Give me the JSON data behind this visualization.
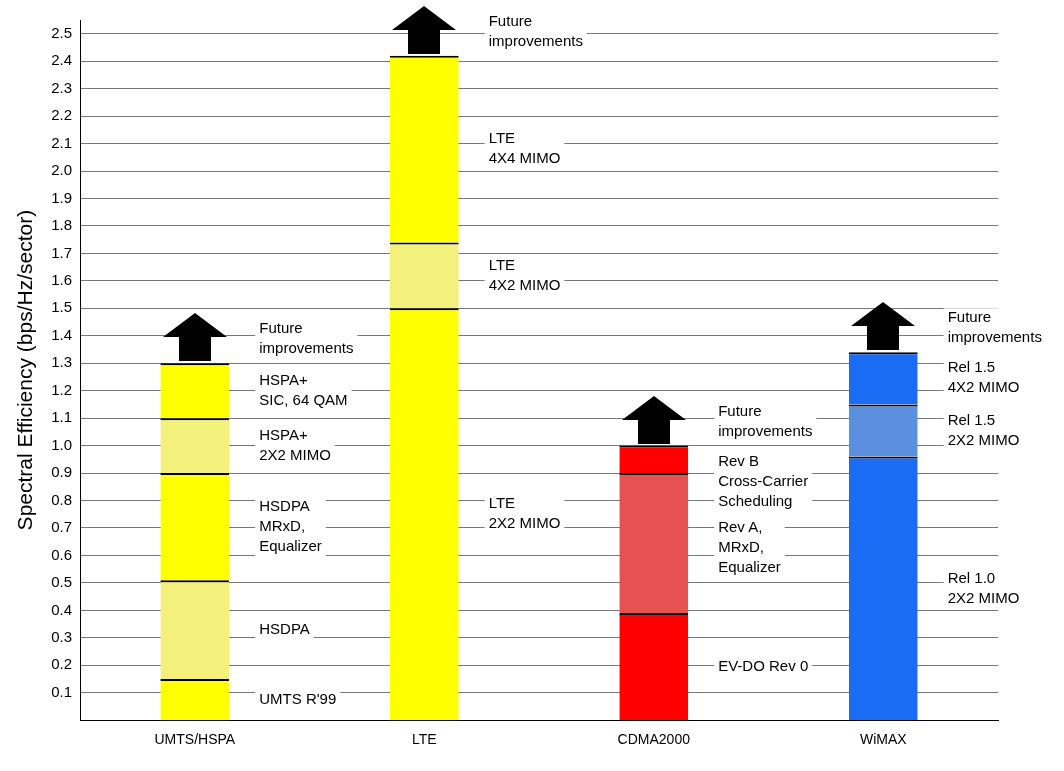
{
  "chart_data": {
    "type": "bar",
    "stacked": true,
    "categories": [
      "UMTS/HSPA",
      "LTE",
      "CDMA2000",
      "WiMAX"
    ],
    "ylabel": "Spectral Efficiency (bps/Hz/sector)",
    "ylim": [
      0,
      2.55
    ],
    "yticks": [
      0.1,
      0.2,
      0.3,
      0.4,
      0.5,
      0.6,
      0.7,
      0.8,
      0.9,
      {
        "value": 1,
        "label": "1.0"
      },
      1.1,
      1.2,
      1.3,
      1.4,
      1.5,
      1.6,
      1.7,
      1.8,
      1.9,
      {
        "value": 2,
        "label": "2.0"
      },
      2.1,
      2.2,
      2.3,
      2.4,
      2.5
    ],
    "grid": "y",
    "legend": false,
    "series": [
      {
        "name": "UMTS R'99",
        "color": "#ffff00",
        "values": [
          0.15,
          null,
          null,
          null
        ]
      },
      {
        "name": "HSDPA",
        "color": "#f4f07c",
        "values": [
          0.36,
          null,
          null,
          null
        ]
      },
      {
        "name": "HSDPA\nMRxD,\nEqualizer",
        "color": "#ffff00",
        "values": [
          0.39,
          null,
          null,
          null
        ]
      },
      {
        "name": "HSPA+\n2X2 MIMO",
        "color": "#f4f07c",
        "values": [
          0.2,
          null,
          null,
          null
        ]
      },
      {
        "name": "HSPA+\nSIC, 64 QAM",
        "color": "#ffff00",
        "values": [
          0.2,
          null,
          null,
          null
        ]
      },
      {
        "name": "LTE\n2X2 MIMO",
        "color": "#ffff00",
        "values": [
          null,
          1.5,
          null,
          null
        ]
      },
      {
        "name": "LTE\n4X2 MIMO",
        "color": "#f4f07c",
        "values": [
          null,
          0.24,
          null,
          null
        ]
      },
      {
        "name": "LTE\n4X4 MIMO",
        "color": "#ffff00",
        "values": [
          null,
          0.68,
          null,
          null
        ]
      },
      {
        "name": "EV-DO Rev 0",
        "color": "#ff0000",
        "values": [
          null,
          null,
          0.39,
          null
        ]
      },
      {
        "name": "Rev A,\nMRxD,\nEqualizer",
        "color": "#e65252",
        "values": [
          null,
          null,
          0.51,
          null
        ]
      },
      {
        "name": "Rev B\nCross-Carrier\nScheduling",
        "color": "#ff0000",
        "values": [
          null,
          null,
          0.1,
          null
        ]
      },
      {
        "name": "Rel 1.0\n2X2 MIMO",
        "color": "#1a6cf5",
        "values": [
          null,
          null,
          null,
          0.96
        ]
      },
      {
        "name": "Rel 1.5\n2X2 MIMO",
        "color": "#5a90de",
        "values": [
          null,
          null,
          null,
          0.19
        ]
      },
      {
        "name": "Rel 1.5\n4X2 MIMO",
        "color": "#1a6cf5",
        "values": [
          null,
          null,
          null,
          0.19
        ]
      }
    ],
    "annotations": [
      "Future\nimprovements",
      "Future\nimprovements",
      "Future\nimprovements",
      "Future\nimprovements"
    ]
  }
}
